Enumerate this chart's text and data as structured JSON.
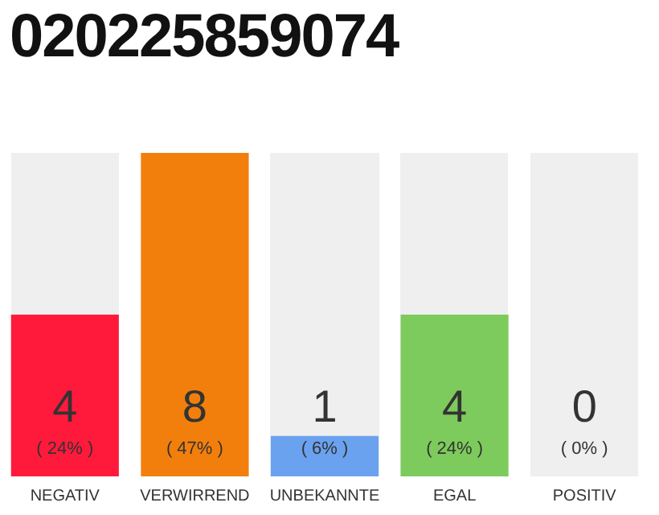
{
  "chart_data": {
    "type": "bar",
    "title": "020225859074",
    "categories": [
      "NEGATIV",
      "VERWIRREND",
      "UNBEKANNTE",
      "EGAL",
      "POSITIV"
    ],
    "values": [
      4,
      8,
      1,
      4,
      0
    ],
    "colors": [
      "#ff1a3c",
      "#f27f0c",
      "#6aa2f0",
      "#7dcb5c",
      "#bdbdbd"
    ],
    "ylim": [
      0,
      8
    ],
    "tick_labels": "x",
    "grid": false,
    "legend": false,
    "data_labels": true,
    "annotations": [
      "( 24% )",
      "( 47% )",
      "( 6% )",
      "( 24% )",
      "( 0% )"
    ]
  }
}
